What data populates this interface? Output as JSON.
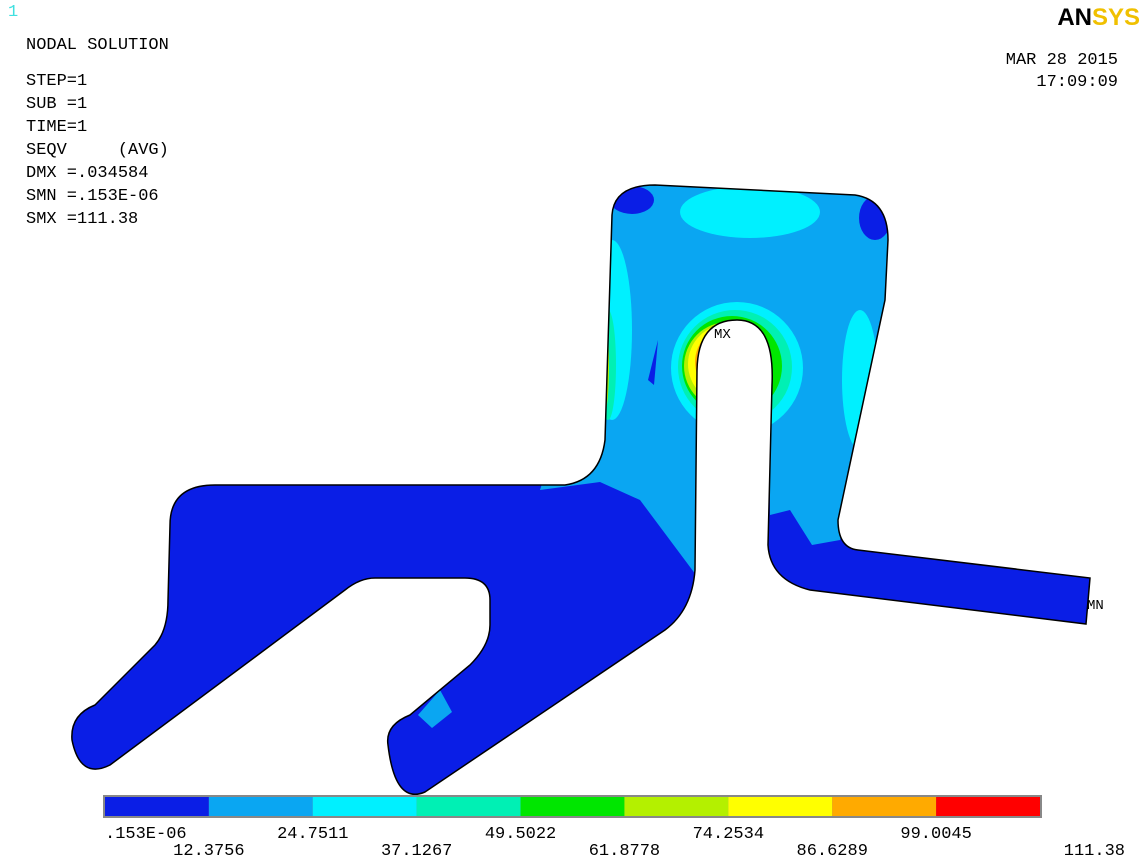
{
  "window_number": "1",
  "logo": "ANSYS",
  "header": {
    "title": "NODAL SOLUTION",
    "lines": [
      "STEP=1",
      "SUB =1",
      "TIME=1",
      "SEQV     (AVG)",
      "DMX =.034584",
      "SMN =.153E-06",
      "SMX =111.38"
    ],
    "date": "MAR 28 2015",
    "time": "17:09:09"
  },
  "markers": {
    "max": "MX",
    "min": "MN"
  },
  "legend": {
    "colors": [
      "#0a1ee6",
      "#0aa6f2",
      "#00f0ff",
      "#00f0b4",
      "#00e600",
      "#b4f000",
      "#ffff00",
      "#ffaa00",
      "#ff0000"
    ],
    "labels": [
      ".153E-06",
      "12.3756",
      "24.7511",
      "37.1267",
      "49.5022",
      "61.8778",
      "74.2534",
      "86.6289",
      "99.0045",
      "111.38"
    ]
  }
}
